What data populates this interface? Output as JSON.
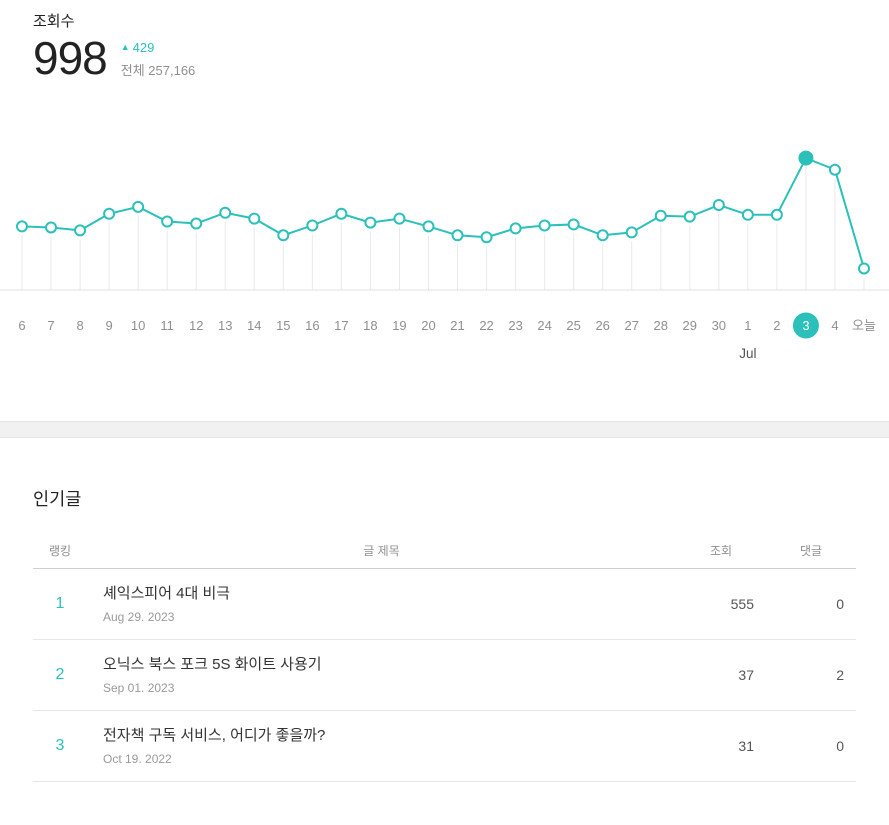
{
  "colors": {
    "accent": "#2bc0ba",
    "grid": "#e9e9e9",
    "axis": "#e0e0e0",
    "tick_gray": "#8f8f8f",
    "month_gray": "#555555"
  },
  "summary": {
    "label": "조회수",
    "value": "998",
    "delta_icon": "▲",
    "delta": "429",
    "total": "전체 257,166"
  },
  "chart_data": {
    "type": "line",
    "x": [
      "6",
      "7",
      "8",
      "9",
      "10",
      "11",
      "12",
      "13",
      "14",
      "15",
      "16",
      "17",
      "18",
      "19",
      "20",
      "21",
      "22",
      "23",
      "24",
      "25",
      "26",
      "27",
      "28",
      "29",
      "30",
      "1",
      "2",
      "3",
      "4",
      "오늘"
    ],
    "values": [
      481,
      473,
      451,
      577,
      629,
      518,
      503,
      584,
      540,
      414,
      488,
      577,
      510,
      540,
      481,
      414,
      399,
      466,
      488,
      496,
      414,
      436,
      562,
      555,
      643,
      569,
      569,
      998,
      910,
      163
    ],
    "series_name": "조회수",
    "selected_index": 27,
    "selected_label": "3",
    "month_label": "Jul",
    "month_label_index": 25,
    "ylim": [
      0,
      1150
    ],
    "grid": true,
    "legend": false,
    "title": "",
    "xlabel": "",
    "ylabel": ""
  },
  "popular": {
    "title": "인기글",
    "headers": {
      "rank": "랭킹",
      "title": "글 제목",
      "views": "조회",
      "comments": "댓글"
    },
    "rows": [
      {
        "rank": "1",
        "title": "셰익스피어 4대 비극",
        "date": "Aug 29. 2023",
        "views": "555",
        "comments": "0"
      },
      {
        "rank": "2",
        "title": "오닉스 북스 포크 5S 화이트 사용기",
        "date": "Sep 01. 2023",
        "views": "37",
        "comments": "2"
      },
      {
        "rank": "3",
        "title": "전자책 구독 서비스, 어디가 좋을까?",
        "date": "Oct 19. 2022",
        "views": "31",
        "comments": "0"
      }
    ]
  }
}
